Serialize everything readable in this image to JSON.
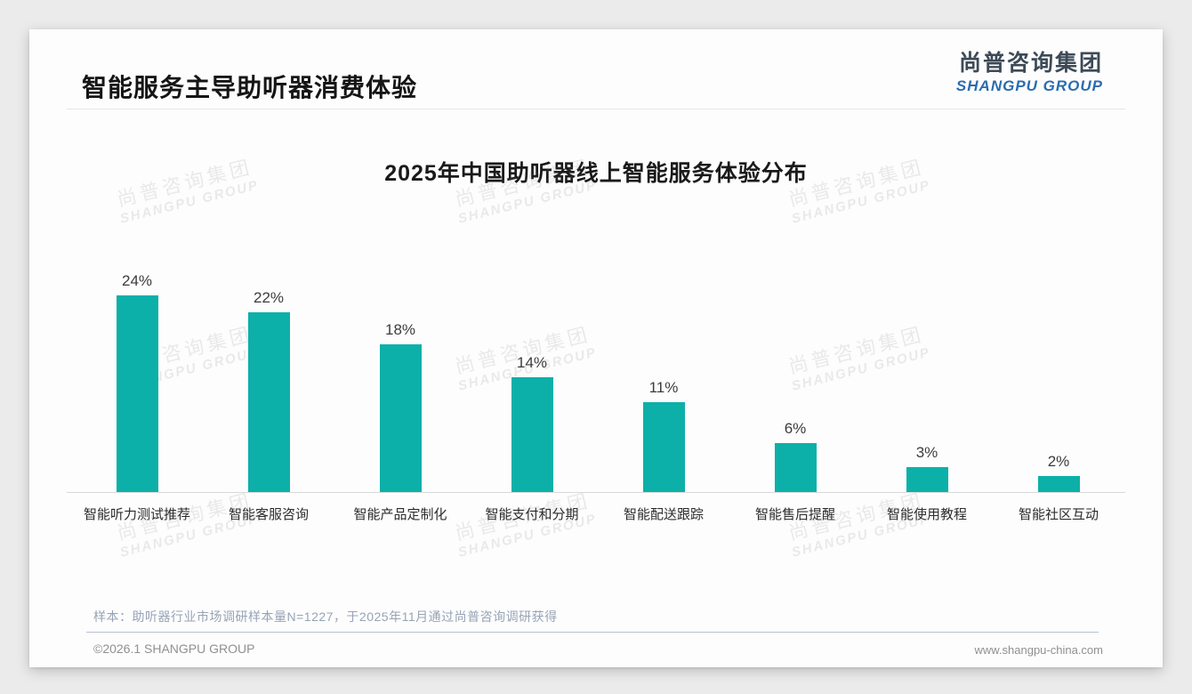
{
  "header": {
    "title": "智能服务主导助听器消费体验"
  },
  "logo": {
    "cn": "尚普咨询集团",
    "en": "SHANGPU GROUP"
  },
  "watermark": {
    "cn": "尚普咨询集团",
    "en": "SHANGPU GROUP"
  },
  "chart_data": {
    "type": "bar",
    "title": "2025年中国助听器线上智能服务体验分布",
    "categories": [
      "智能听力测试推荐",
      "智能客服咨询",
      "智能产品定制化",
      "智能支付和分期",
      "智能配送跟踪",
      "智能售后提醒",
      "智能使用教程",
      "智能社区互动"
    ],
    "values": [
      24,
      22,
      18,
      14,
      11,
      6,
      3,
      2
    ],
    "value_labels": [
      "24%",
      "22%",
      "18%",
      "14%",
      "11%",
      "6%",
      "3%",
      "2%"
    ],
    "unit": "%",
    "bar_color": "#0cb0a9",
    "ylim": [
      0,
      26
    ],
    "grid": false,
    "legend": "none",
    "xlabel": "",
    "ylabel": ""
  },
  "note": "样本：助听器行业市场调研样本量N=1227，于2025年11月通过尚普咨询调研获得",
  "footer": {
    "copyright": "©2026.1 SHANGPU GROUP",
    "website": "www.shangpu-china.com"
  },
  "colors": {
    "bar": "#0cb0a9",
    "logo_blue": "#2b6cb0",
    "logo_dark": "#3d4a57"
  }
}
